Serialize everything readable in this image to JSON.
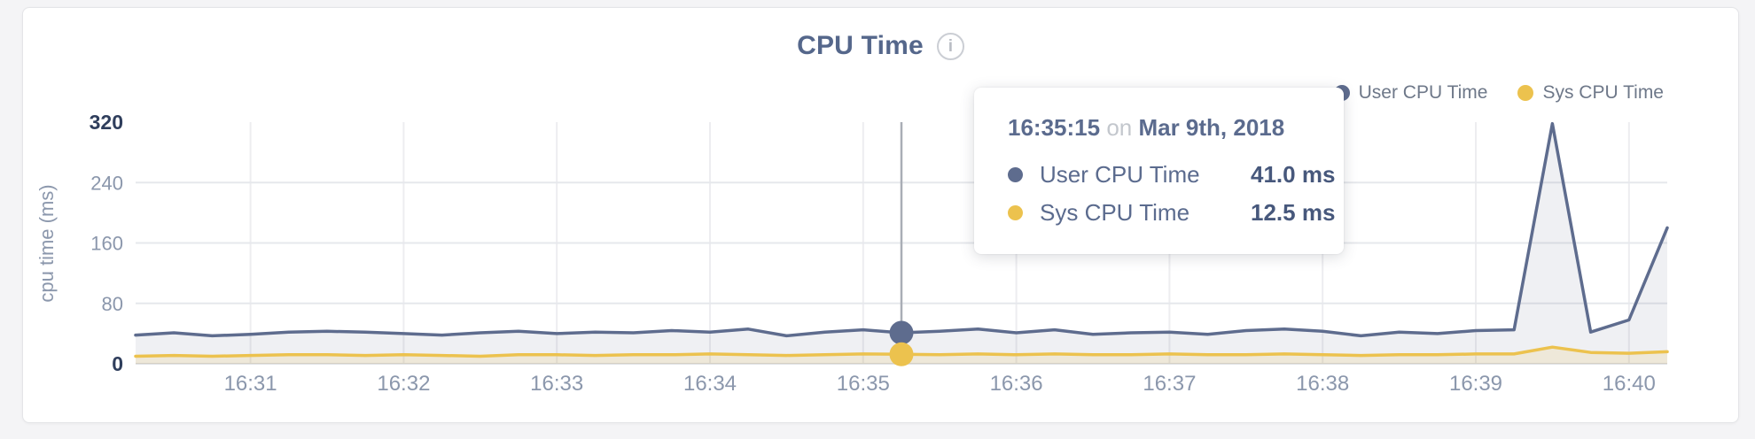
{
  "page": {
    "background": "#f4f4f6"
  },
  "header": {
    "title": "CPU Time"
  },
  "legend": {
    "items": [
      {
        "label": "User CPU Time",
        "color": "#5e6c8e"
      },
      {
        "label": "Sys CPU Time",
        "color": "#ecc24e"
      }
    ]
  },
  "tooltip": {
    "time": "16:35:15",
    "connector": "on",
    "date": "Mar 9th, 2018",
    "rows": [
      {
        "label": "User CPU Time",
        "value": "41.0 ms",
        "color": "#5e6c8e"
      },
      {
        "label": "Sys CPU Time",
        "value": "12.5 ms",
        "color": "#ecc24e"
      }
    ]
  },
  "chart_data": {
    "type": "line",
    "title": "CPU Time",
    "xlabel": "",
    "ylabel": "cpu time (ms)",
    "ylim": [
      0,
      320
    ],
    "yticks": [
      0,
      80,
      160,
      240,
      320
    ],
    "yticks_emphasized": [
      0,
      320
    ],
    "xticks": [
      "16:31",
      "16:32",
      "16:33",
      "16:34",
      "16:35",
      "16:36",
      "16:37",
      "16:38",
      "16:39",
      "16:40"
    ],
    "x_range": [
      "16:30:15",
      "16:40:15"
    ],
    "sample_step_seconds": 15,
    "grid": true,
    "legend_position": "top-right",
    "hover": {
      "time": "16:35:15",
      "index": 20
    },
    "series": [
      {
        "name": "User CPU Time",
        "color": "#5e6c8e",
        "fill": "rgba(94,108,142,0.10)",
        "values": [
          38,
          41,
          37,
          39,
          42,
          43,
          42,
          40,
          38,
          41,
          43,
          40,
          42,
          41,
          44,
          42,
          46,
          37,
          42,
          45,
          41,
          43,
          46,
          41,
          45,
          39,
          41,
          42,
          39,
          44,
          46,
          43,
          37,
          42,
          40,
          44,
          45,
          318,
          42,
          58,
          180
        ]
      },
      {
        "name": "Sys CPU Time",
        "color": "#ecc24e",
        "fill": "rgba(236,194,78,0.16)",
        "values": [
          10,
          11,
          10,
          11,
          12,
          12,
          11,
          12,
          11,
          10,
          12,
          12,
          11,
          12,
          12,
          13,
          12,
          11,
          12,
          13,
          12.5,
          12,
          13,
          12,
          13,
          12,
          12,
          13,
          12,
          12,
          13,
          12,
          11,
          12,
          12,
          13,
          13,
          22,
          15,
          14,
          16
        ]
      }
    ],
    "colors": {
      "grid_horizontal": "#e6e8ec",
      "grid_vertical": "#ededf0",
      "baseline": "#dfe1e5",
      "crosshair": "#a9aeb6",
      "tick_label": "#8b97ac",
      "tick_label_emphasized": "#2f3e5c",
      "axis_title": "#8b97ac"
    }
  }
}
